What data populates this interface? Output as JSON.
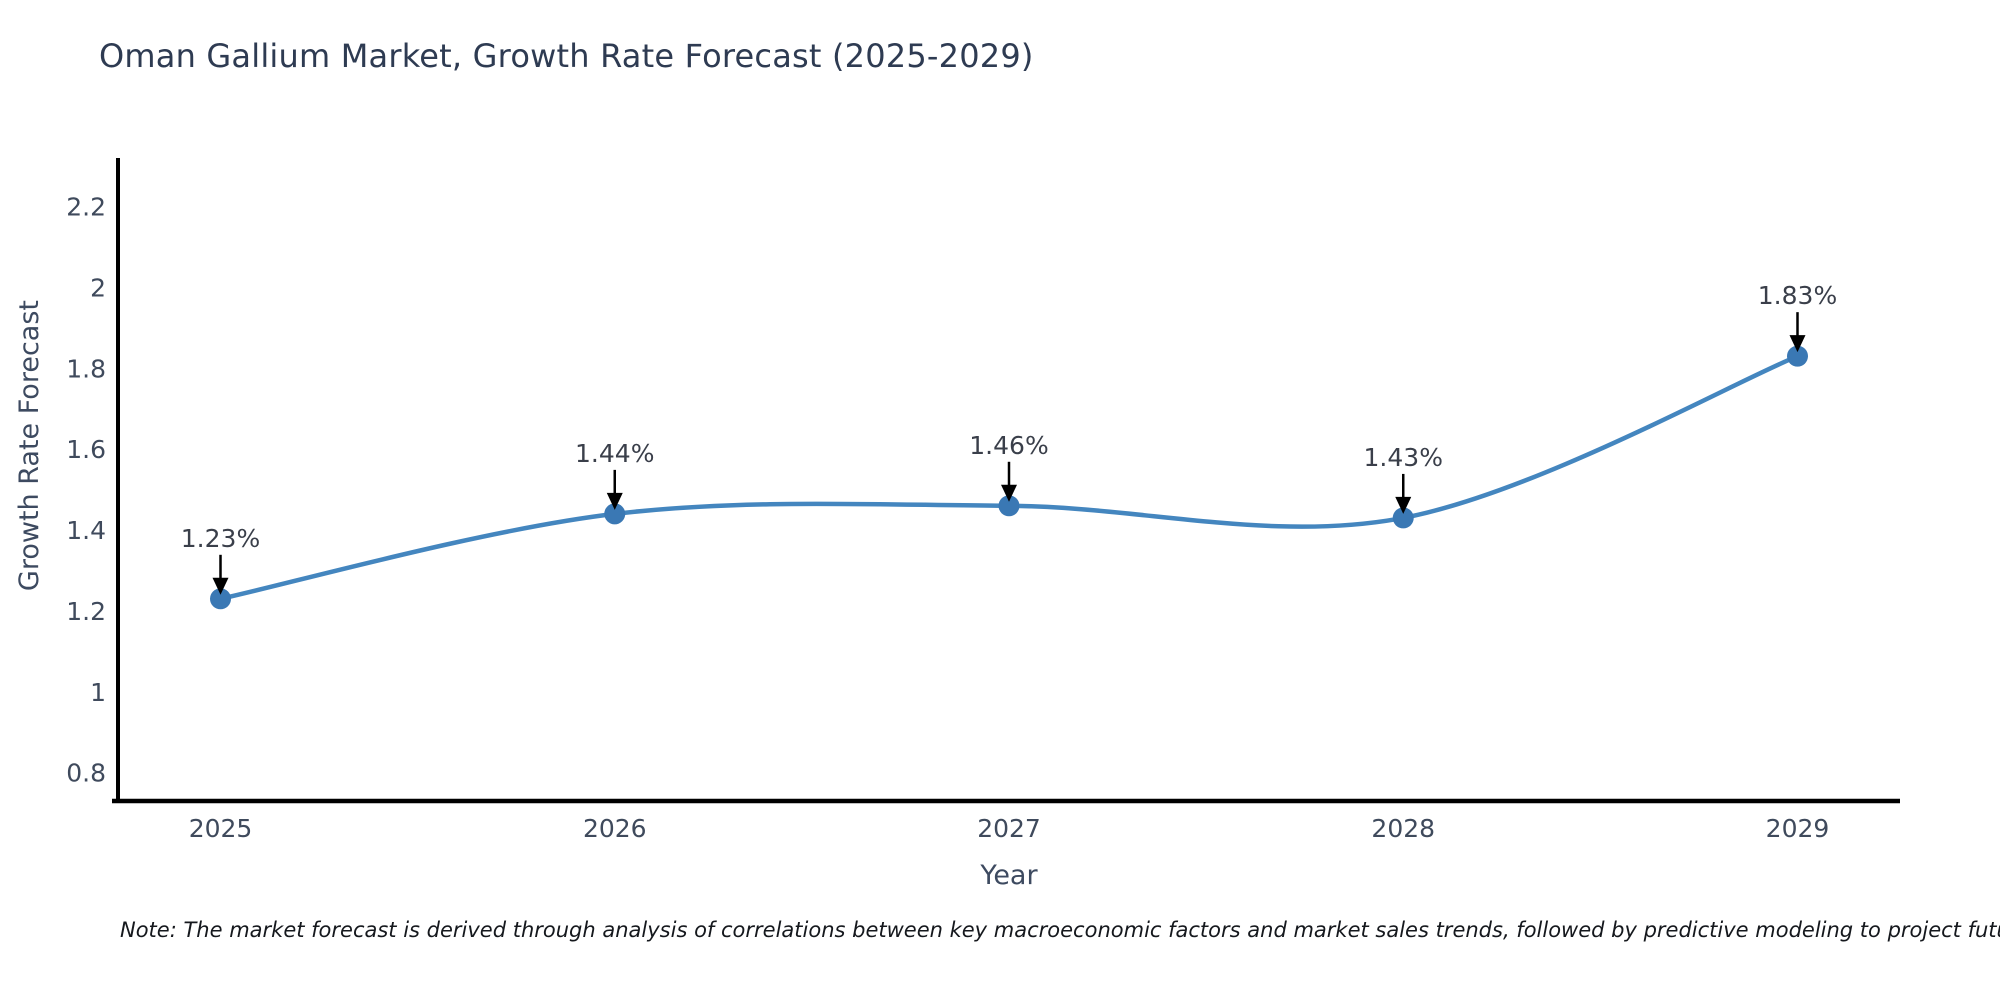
{
  "figure": {
    "title": "Oman Gallium Market, Growth Rate Forecast (2025-2029)",
    "note": "Note: The market forecast is derived through analysis of correlations between key macroeconomic factors and market sales trends, followed by predictive modeling to project future sales",
    "colors": {
      "line": "#4486bf",
      "marker": "#3a78b4",
      "axis": "#000000",
      "title_text": "#2e3b52",
      "axis_title_text": "#3d4a60",
      "tick_text": "#3f4a5c",
      "label_text": "#3a3f4a",
      "arrow": "#000000",
      "background": "#ffffff"
    }
  },
  "chart_data": {
    "type": "line",
    "line_shape": "spline",
    "marker": "circle",
    "grid": false,
    "legend": "none",
    "title": "Oman Gallium Market, Growth Rate Forecast (2025-2029)",
    "xlabel": "Year",
    "ylabel": "Growth Rate Forecast",
    "x": [
      2025,
      2026,
      2027,
      2028,
      2029
    ],
    "values": [
      1.23,
      1.44,
      1.46,
      1.43,
      1.83
    ],
    "labels": [
      "1.23%",
      "1.44%",
      "1.46%",
      "1.43%",
      "1.83%"
    ],
    "xticks": [
      "2025",
      "2026",
      "2027",
      "2028",
      "2029"
    ],
    "yticks": [
      "0.8",
      "1",
      "1.2",
      "1.4",
      "1.6",
      "1.8",
      "2",
      "2.2"
    ],
    "ytick_values": [
      0.8,
      1.0,
      1.2,
      1.4,
      1.6,
      1.8,
      2.0,
      2.2
    ],
    "xlim": [
      2024.74,
      2029.26
    ],
    "ylim": [
      0.73,
      2.32
    ]
  }
}
